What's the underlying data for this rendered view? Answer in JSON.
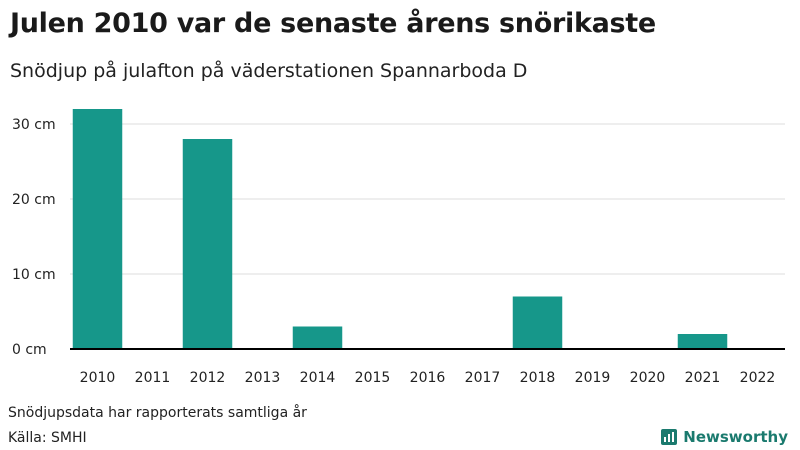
{
  "header": {
    "title": "Julen 2010 var de senaste årens snörikaste",
    "subtitle": "Snödjup på julafton på väderstationen Spannarboda D"
  },
  "footer": {
    "note": "Snödjupsdata har rapporterats samtliga år",
    "source": "Källa: SMHI",
    "brand": "Newsworthy",
    "brand_icon": "bar-chart-logo-icon"
  },
  "colors": {
    "bar": "#16978a",
    "grid": "#dddddd",
    "axis": "#000000",
    "brand": "#1a7a6e"
  },
  "chart_data": {
    "type": "bar",
    "categories": [
      "2010",
      "2011",
      "2012",
      "2013",
      "2014",
      "2015",
      "2016",
      "2017",
      "2018",
      "2019",
      "2020",
      "2021",
      "2022"
    ],
    "values": [
      32,
      0,
      28,
      0,
      3,
      0,
      0,
      0,
      7,
      0,
      0,
      2,
      0
    ],
    "ylim": [
      0,
      32
    ],
    "yticks": [
      0,
      10,
      20,
      30
    ],
    "ytick_labels": [
      "0 cm",
      "10 cm",
      "20 cm",
      "30 cm"
    ],
    "xlabel": "",
    "ylabel": "",
    "grid": true
  }
}
